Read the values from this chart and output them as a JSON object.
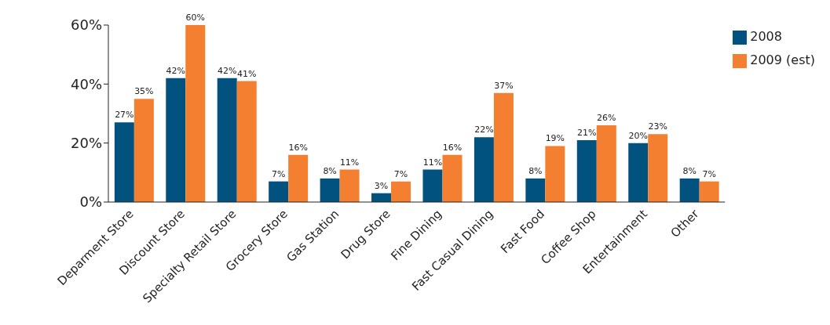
{
  "chart_data": {
    "type": "bar",
    "categories": [
      "Deparment Store",
      "Discount Store",
      "Specialty Retail Store",
      "Grocery Store",
      "Gas Station",
      "Drug Store",
      "Fine Dining",
      "Fast Casual Dining",
      "Fast Food",
      "Coffee Shop",
      "Entertainment",
      "Other"
    ],
    "series": [
      {
        "name": "2008",
        "color": "#02527f",
        "values": [
          27,
          42,
          42,
          7,
          8,
          3,
          11,
          22,
          8,
          21,
          20,
          8
        ],
        "value_labels": [
          "27%",
          "42%",
          "42%",
          "7%",
          "8%",
          "3%",
          "11%",
          "22%",
          "8%",
          "21%",
          "20%",
          "8%"
        ]
      },
      {
        "name": "2009 (est)",
        "color": "#f47f31",
        "values": [
          35,
          60,
          41,
          16,
          11,
          7,
          16,
          37,
          19,
          26,
          23,
          7
        ],
        "value_labels": [
          "35%",
          "60%",
          "41%",
          "16%",
          "11%",
          "7%",
          "16%",
          "37%",
          "19%",
          "26%",
          "23%",
          "7%"
        ]
      }
    ],
    "ylim": [
      0,
      60
    ],
    "yticks": [
      {
        "value": 0,
        "label": "0%"
      },
      {
        "value": 20,
        "label": "20%"
      },
      {
        "value": 40,
        "label": "40%"
      },
      {
        "value": 60,
        "label": "60%"
      }
    ],
    "grid": false,
    "legend": "top right"
  }
}
